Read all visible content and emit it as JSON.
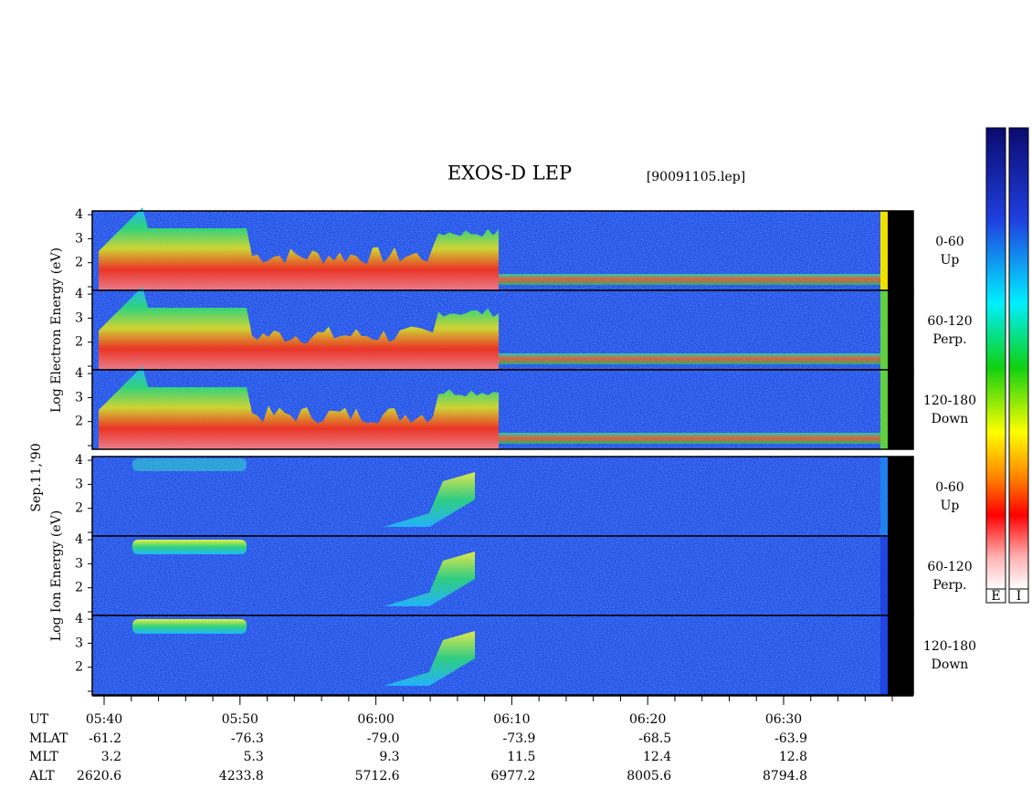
{
  "header": {
    "title": "EXOS-D LEP",
    "file": "[90091105.lep]"
  },
  "date": "Sep.11,'90",
  "groups": [
    {
      "axis_label": "Log Electron Energy (eV)",
      "panels": [
        {
          "pitch": "0-60",
          "direction": "Up",
          "yticks": [
            "2",
            "3",
            "4"
          ]
        },
        {
          "pitch": "60-120",
          "direction": "Perp.",
          "yticks": [
            "2",
            "3",
            "4"
          ]
        },
        {
          "pitch": "120-180",
          "direction": "Down",
          "yticks": [
            "2",
            "3",
            "4"
          ]
        }
      ]
    },
    {
      "axis_label": "Log Ion Energy (eV)",
      "panels": [
        {
          "pitch": "0-60",
          "direction": "Up",
          "yticks": [
            "2",
            "3",
            "4"
          ]
        },
        {
          "pitch": "60-120",
          "direction": "Perp.",
          "yticks": [
            "2",
            "3",
            "4"
          ]
        },
        {
          "pitch": "120-180",
          "direction": "Down",
          "yticks": [
            "2",
            "3",
            "4"
          ]
        }
      ]
    }
  ],
  "time_axis": {
    "rows": [
      {
        "label": "UT",
        "values": [
          "05:40",
          "05:50",
          "06:00",
          "06:10",
          "06:20",
          "06:30"
        ]
      },
      {
        "label": "MLAT",
        "values": [
          "-61.2",
          "-76.3",
          "-79.0",
          "-73.9",
          "-68.5",
          "-63.9"
        ]
      },
      {
        "label": "MLT",
        "values": [
          "3.2",
          "5.3",
          "9.3",
          "11.5",
          "12.4",
          "12.8"
        ]
      },
      {
        "label": "ALT",
        "values": [
          "2620.6",
          "4233.8",
          "5712.6",
          "6977.2",
          "8005.6",
          "8794.8"
        ]
      }
    ]
  },
  "colorbar": {
    "labels": [
      "E",
      "I"
    ]
  }
}
